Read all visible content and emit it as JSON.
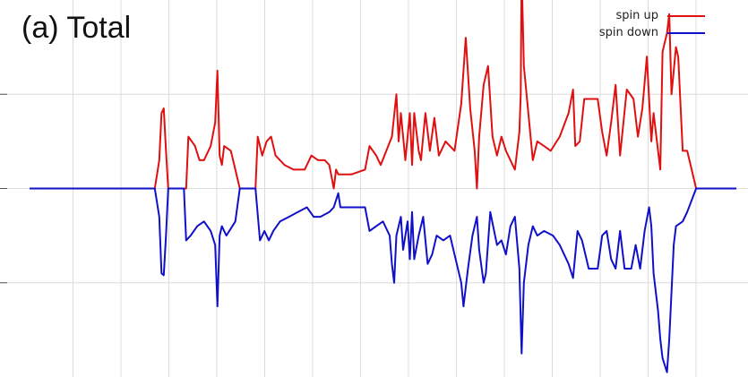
{
  "chart_data": {
    "type": "line",
    "title": "(a) Total",
    "xlabel": "",
    "ylabel": "",
    "grid": true,
    "legend_position": "top-right",
    "x_tick_count": 14,
    "ylim": [
      -2,
      2
    ],
    "series": [
      {
        "name": "spin up",
        "color": "#e01010",
        "points": [
          [
            -8.0,
            0
          ],
          [
            -7.6,
            0
          ],
          [
            -5.2,
            0
          ],
          [
            -5.1,
            0.3
          ],
          [
            -5.05,
            0.8
          ],
          [
            -5.0,
            0.85
          ],
          [
            -4.95,
            0.4
          ],
          [
            -4.9,
            0
          ],
          [
            -4.5,
            0
          ],
          [
            -4.45,
            0.55
          ],
          [
            -4.3,
            0.45
          ],
          [
            -4.2,
            0.3
          ],
          [
            -4.1,
            0.3
          ],
          [
            -3.95,
            0.45
          ],
          [
            -3.85,
            0.7
          ],
          [
            -3.8,
            1.25
          ],
          [
            -3.75,
            0.35
          ],
          [
            -3.7,
            0.25
          ],
          [
            -3.65,
            0.45
          ],
          [
            -3.5,
            0.4
          ],
          [
            -3.3,
            0
          ],
          [
            -2.95,
            0
          ],
          [
            -2.9,
            0.55
          ],
          [
            -2.8,
            0.35
          ],
          [
            -2.7,
            0.5
          ],
          [
            -2.6,
            0.55
          ],
          [
            -2.5,
            0.35
          ],
          [
            -2.3,
            0.25
          ],
          [
            -2.1,
            0.2
          ],
          [
            -1.85,
            0.2
          ],
          [
            -1.7,
            0.35
          ],
          [
            -1.55,
            0.3
          ],
          [
            -1.4,
            0.3
          ],
          [
            -1.3,
            0.25
          ],
          [
            -1.2,
            0
          ],
          [
            -1.15,
            0.2
          ],
          [
            -1.1,
            0.15
          ],
          [
            -0.8,
            0.15
          ],
          [
            -0.5,
            0.2
          ],
          [
            -0.4,
            0.45
          ],
          [
            -0.25,
            0.35
          ],
          [
            -0.15,
            0.25
          ],
          [
            0.1,
            0.55
          ],
          [
            0.2,
            1.0
          ],
          [
            0.25,
            0.5
          ],
          [
            0.3,
            0.8
          ],
          [
            0.4,
            0.3
          ],
          [
            0.5,
            0.8
          ],
          [
            0.55,
            0.25
          ],
          [
            0.6,
            0.8
          ],
          [
            0.7,
            0.4
          ],
          [
            0.75,
            0.3
          ],
          [
            0.85,
            0.8
          ],
          [
            0.95,
            0.4
          ],
          [
            1.05,
            0.75
          ],
          [
            1.15,
            0.35
          ],
          [
            1.3,
            0.5
          ],
          [
            1.5,
            0.4
          ],
          [
            1.65,
            0.9
          ],
          [
            1.75,
            1.6
          ],
          [
            1.85,
            0.85
          ],
          [
            1.95,
            0.4
          ],
          [
            2.0,
            0
          ],
          [
            2.05,
            0.55
          ],
          [
            2.15,
            1.1
          ],
          [
            2.25,
            1.3
          ],
          [
            2.35,
            0.55
          ],
          [
            2.45,
            0.35
          ],
          [
            2.55,
            0.55
          ],
          [
            2.65,
            0.4
          ],
          [
            2.75,
            0.3
          ],
          [
            2.85,
            0.2
          ],
          [
            2.95,
            0.6
          ],
          [
            2.98,
            1.0
          ],
          [
            3.0,
            2.3
          ],
          [
            3.05,
            1.3
          ],
          [
            3.15,
            0.8
          ],
          [
            3.25,
            0.3
          ],
          [
            3.35,
            0.5
          ],
          [
            3.5,
            0.45
          ],
          [
            3.65,
            0.4
          ],
          [
            3.85,
            0.55
          ],
          [
            4.05,
            0.8
          ],
          [
            4.15,
            1.05
          ],
          [
            4.2,
            0.45
          ],
          [
            4.3,
            0.5
          ],
          [
            4.4,
            0.95
          ],
          [
            4.55,
            0.95
          ],
          [
            4.7,
            0.95
          ],
          [
            4.8,
            0.6
          ],
          [
            4.9,
            0.35
          ],
          [
            5.0,
            0.7
          ],
          [
            5.1,
            1.1
          ],
          [
            5.2,
            0.35
          ],
          [
            5.35,
            1.05
          ],
          [
            5.5,
            0.95
          ],
          [
            5.6,
            0.55
          ],
          [
            5.7,
            0.85
          ],
          [
            5.8,
            1.4
          ],
          [
            5.9,
            0.5
          ],
          [
            5.95,
            0.8
          ],
          [
            6.1,
            0.2
          ],
          [
            6.15,
            1.45
          ],
          [
            6.25,
            1.65
          ],
          [
            6.3,
            1.85
          ],
          [
            6.35,
            1.0
          ],
          [
            6.45,
            1.5
          ],
          [
            6.5,
            1.4
          ],
          [
            6.6,
            0.4
          ],
          [
            6.7,
            0.4
          ],
          [
            6.8,
            0.2
          ],
          [
            6.9,
            0
          ],
          [
            7.2,
            0
          ],
          [
            7.8,
            0
          ]
        ]
      },
      {
        "name": "spin down",
        "color": "#1010c8",
        "points": [
          [
            -8.0,
            0
          ],
          [
            -7.6,
            0
          ],
          [
            -5.2,
            0
          ],
          [
            -5.1,
            -0.3
          ],
          [
            -5.05,
            -0.9
          ],
          [
            -5.0,
            -0.92
          ],
          [
            -4.95,
            -0.5
          ],
          [
            -4.9,
            0
          ],
          [
            -4.55,
            0
          ],
          [
            -4.5,
            -0.55
          ],
          [
            -4.4,
            -0.5
          ],
          [
            -4.25,
            -0.4
          ],
          [
            -4.1,
            -0.35
          ],
          [
            -3.95,
            -0.45
          ],
          [
            -3.85,
            -0.6
          ],
          [
            -3.8,
            -1.25
          ],
          [
            -3.75,
            -0.5
          ],
          [
            -3.7,
            -0.4
          ],
          [
            -3.6,
            -0.5
          ],
          [
            -3.4,
            -0.35
          ],
          [
            -3.3,
            0
          ],
          [
            -2.95,
            0
          ],
          [
            -2.85,
            -0.55
          ],
          [
            -2.75,
            -0.45
          ],
          [
            -2.65,
            -0.55
          ],
          [
            -2.55,
            -0.45
          ],
          [
            -2.4,
            -0.35
          ],
          [
            -2.2,
            -0.3
          ],
          [
            -2.0,
            -0.25
          ],
          [
            -1.8,
            -0.2
          ],
          [
            -1.65,
            -0.3
          ],
          [
            -1.5,
            -0.3
          ],
          [
            -1.3,
            -0.25
          ],
          [
            -1.2,
            -0.2
          ],
          [
            -1.1,
            -0.05
          ],
          [
            -1.05,
            -0.2
          ],
          [
            -0.8,
            -0.2
          ],
          [
            -0.5,
            -0.2
          ],
          [
            -0.4,
            -0.45
          ],
          [
            -0.25,
            -0.4
          ],
          [
            -0.1,
            -0.35
          ],
          [
            0.05,
            -0.5
          ],
          [
            0.1,
            -0.8
          ],
          [
            0.15,
            -1.0
          ],
          [
            0.2,
            -0.5
          ],
          [
            0.3,
            -0.3
          ],
          [
            0.35,
            -0.65
          ],
          [
            0.45,
            -0.35
          ],
          [
            0.5,
            -0.75
          ],
          [
            0.55,
            -0.25
          ],
          [
            0.6,
            -0.75
          ],
          [
            0.7,
            -0.5
          ],
          [
            0.8,
            -0.3
          ],
          [
            0.9,
            -0.8
          ],
          [
            1.0,
            -0.7
          ],
          [
            1.1,
            -0.5
          ],
          [
            1.25,
            -0.55
          ],
          [
            1.4,
            -0.5
          ],
          [
            1.55,
            -0.8
          ],
          [
            1.65,
            -1.0
          ],
          [
            1.7,
            -1.25
          ],
          [
            1.8,
            -0.85
          ],
          [
            1.9,
            -0.5
          ],
          [
            2.0,
            -0.3
          ],
          [
            2.05,
            -0.65
          ],
          [
            2.15,
            -1.0
          ],
          [
            2.2,
            -0.9
          ],
          [
            2.3,
            -0.25
          ],
          [
            2.45,
            -0.6
          ],
          [
            2.55,
            -0.55
          ],
          [
            2.65,
            -0.7
          ],
          [
            2.75,
            -0.4
          ],
          [
            2.85,
            -0.3
          ],
          [
            2.95,
            -0.85
          ],
          [
            2.98,
            -1.4
          ],
          [
            3.0,
            -1.75
          ],
          [
            3.05,
            -1.0
          ],
          [
            3.15,
            -0.6
          ],
          [
            3.25,
            -0.4
          ],
          [
            3.35,
            -0.5
          ],
          [
            3.5,
            -0.45
          ],
          [
            3.7,
            -0.5
          ],
          [
            3.85,
            -0.6
          ],
          [
            4.05,
            -0.8
          ],
          [
            4.15,
            -0.95
          ],
          [
            4.25,
            -0.45
          ],
          [
            4.35,
            -0.55
          ],
          [
            4.5,
            -0.85
          ],
          [
            4.6,
            -0.85
          ],
          [
            4.7,
            -0.85
          ],
          [
            4.8,
            -0.5
          ],
          [
            4.9,
            -0.45
          ],
          [
            5.0,
            -0.75
          ],
          [
            5.1,
            -0.85
          ],
          [
            5.2,
            -0.45
          ],
          [
            5.3,
            -0.85
          ],
          [
            5.45,
            -0.85
          ],
          [
            5.55,
            -0.6
          ],
          [
            5.65,
            -0.85
          ],
          [
            5.75,
            -0.45
          ],
          [
            5.85,
            -0.2
          ],
          [
            5.9,
            -0.4
          ],
          [
            5.95,
            -0.9
          ],
          [
            6.05,
            -1.3
          ],
          [
            6.1,
            -1.6
          ],
          [
            6.15,
            -1.8
          ],
          [
            6.25,
            -1.95
          ],
          [
            6.3,
            -1.6
          ],
          [
            6.4,
            -0.6
          ],
          [
            6.45,
            -0.4
          ],
          [
            6.6,
            -0.35
          ],
          [
            6.7,
            -0.25
          ],
          [
            6.9,
            0
          ],
          [
            7.2,
            0
          ],
          [
            7.8,
            0
          ]
        ]
      }
    ]
  }
}
